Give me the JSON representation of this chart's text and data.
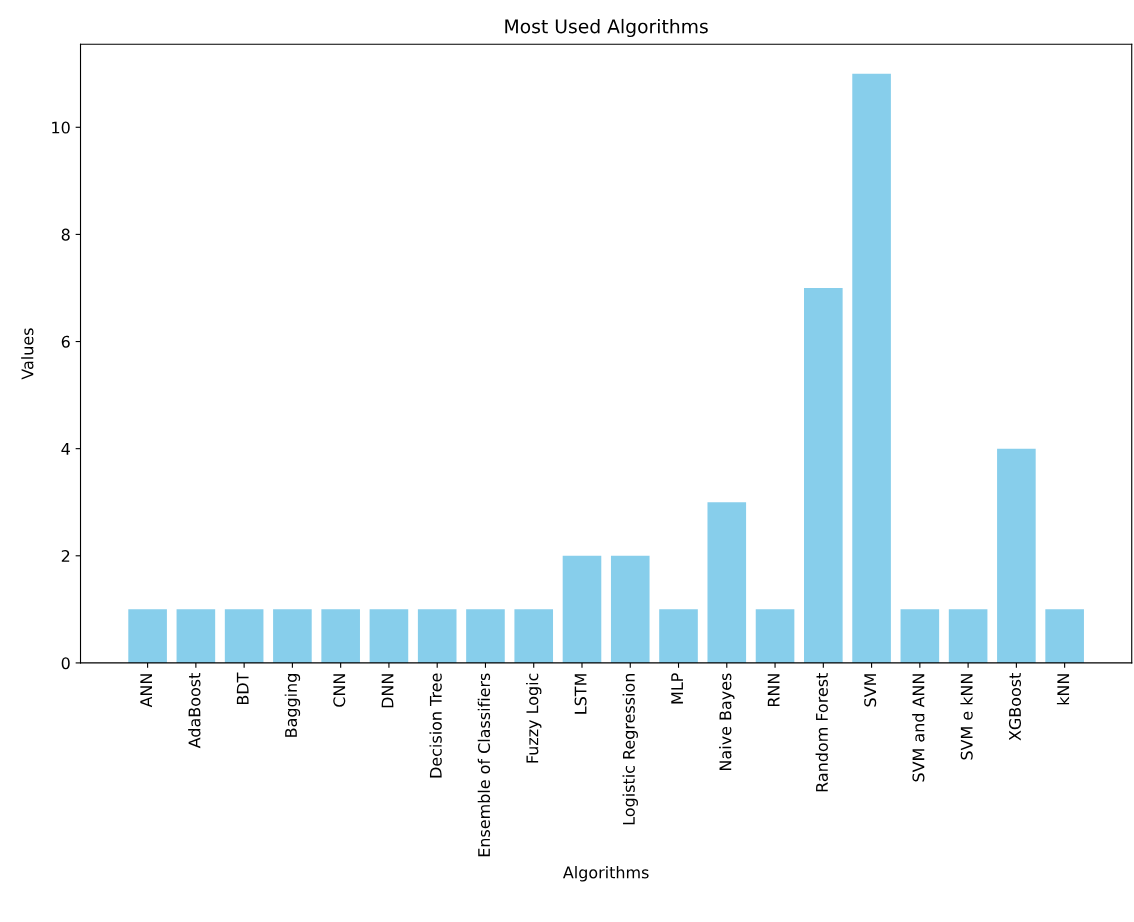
{
  "chart_data": {
    "type": "bar",
    "title": "Most Used Algorithms",
    "xlabel": "Algorithms",
    "ylabel": "Values",
    "categories": [
      "ANN",
      "AdaBoost",
      "BDT",
      "Bagging",
      "CNN",
      "DNN",
      "Decision Tree",
      "Ensemble of Classifiers",
      "Fuzzy Logic",
      "LSTM",
      "Logistic Regression",
      "MLP",
      "Naive Bayes",
      "RNN",
      "Random Forest",
      "SVM",
      "SVM and ANN",
      "SVM e kNN",
      "XGBoost",
      "kNN"
    ],
    "values": [
      1,
      1,
      1,
      1,
      1,
      1,
      1,
      1,
      1,
      2,
      2,
      1,
      3,
      1,
      7,
      11,
      1,
      1,
      4,
      1
    ],
    "color": "#87ceeb",
    "ylim": [
      0,
      11.55
    ],
    "yticks": [
      0,
      2,
      4,
      6,
      8,
      10
    ],
    "grid": false
  }
}
